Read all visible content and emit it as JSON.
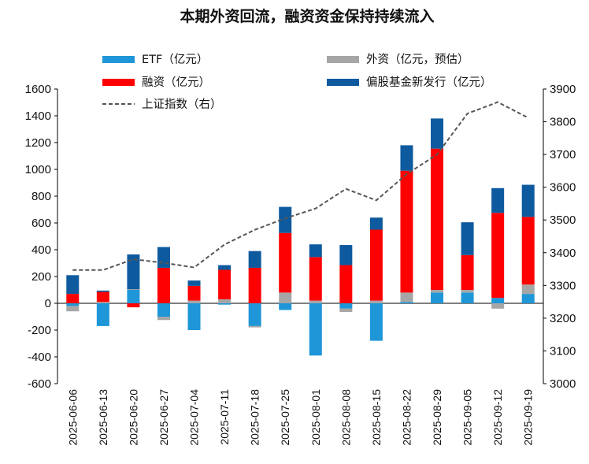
{
  "chart_data": {
    "type": "bar",
    "title": "本期外资回流，融资资金保持持续流入",
    "categories": [
      "2025-06-06",
      "2025-06-13",
      "2025-06-20",
      "2025-06-27",
      "2025-07-04",
      "2025-07-11",
      "2025-07-18",
      "2025-07-25",
      "2025-08-01",
      "2025-08-08",
      "2025-08-15",
      "2025-08-22",
      "2025-08-29",
      "2025-09-05",
      "2025-09-12",
      "2025-09-19"
    ],
    "stacked": true,
    "ylim": [
      -600,
      1600
    ],
    "yticks": [
      "-600",
      "-400",
      "-200",
      "0",
      "200",
      "400",
      "600",
      "800",
      "1000",
      "1200",
      "1400",
      "1600"
    ],
    "y2lim": [
      3000,
      3900
    ],
    "y2ticks": [
      "3000",
      "3100",
      "3200",
      "3300",
      "3400",
      "3500",
      "3600",
      "3700",
      "3800",
      "3900"
    ],
    "series": [
      {
        "name": "ETF（亿元）",
        "color": "#1F96D8",
        "kind": "bar",
        "values": [
          -20,
          -170,
          100,
          -100,
          -200,
          -10,
          -170,
          -50,
          -390,
          -40,
          -280,
          10,
          80,
          80,
          40,
          70
        ]
      },
      {
        "name": "外资（亿元，预估）",
        "color": "#A6A6A6",
        "kind": "bar",
        "values": [
          -40,
          10,
          5,
          -25,
          20,
          30,
          -10,
          80,
          20,
          -25,
          20,
          70,
          20,
          20,
          -40,
          70
        ]
      },
      {
        "name": "融资（亿元）",
        "color": "#FF0000",
        "kind": "bar",
        "values": [
          70,
          75,
          -30,
          265,
          110,
          220,
          265,
          445,
          325,
          285,
          530,
          910,
          1055,
          260,
          635,
          505
        ]
      },
      {
        "name": "偏股基金新发行（亿元）",
        "color": "#0E5A9E",
        "kind": "bar",
        "values": [
          140,
          10,
          260,
          155,
          40,
          35,
          125,
          195,
          95,
          150,
          90,
          190,
          225,
          245,
          185,
          240
        ]
      },
      {
        "name": "上证指数（右）",
        "color": "#555555",
        "kind": "line",
        "axis": "right",
        "values": [
          3347,
          3347,
          3380,
          3369,
          3355,
          3425,
          3470,
          3505,
          3535,
          3595,
          3560,
          3640,
          3700,
          3825,
          3860,
          3812
        ]
      }
    ]
  }
}
